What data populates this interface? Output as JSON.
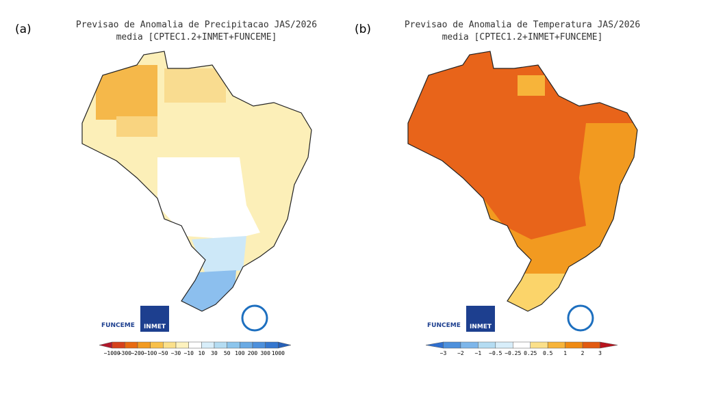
{
  "panels": [
    {
      "label": "(a)",
      "title": "Previsao de Anomalia de Precipitacao JAS/2026",
      "subtitle": "media [CPTEC1.2+INMET+FUNCEME]",
      "logos": [
        "FUNCEME",
        "INMET"
      ],
      "colorbar": {
        "labels": [
          "−1000",
          "−300",
          "−200",
          "−100",
          "−50",
          "−30",
          "−10",
          "10",
          "30",
          "50",
          "100",
          "200",
          "300",
          "1000"
        ],
        "colors": [
          "#b2182b",
          "#d6411b",
          "#e86a10",
          "#f29a20",
          "#f8c04a",
          "#fbe08a",
          "#fdf2be",
          "#ffffff",
          "#d8eefa",
          "#b4dcf2",
          "#8cc5ec",
          "#6aaae4",
          "#4d90dc",
          "#3577cf",
          "#2660b8"
        ]
      }
    },
    {
      "label": "(b)",
      "title": "Previsao de Anomalia de Temperatura JAS/2026",
      "subtitle": "media [CPTEC1.2+INMET+FUNCEME]",
      "logos": [
        "FUNCEME",
        "INMET"
      ],
      "colorbar": {
        "labels": [
          "−3",
          "−2",
          "−1",
          "−0.5",
          "−0.25",
          "0.25",
          "0.5",
          "1",
          "2",
          "3"
        ],
        "colors": [
          "#2f6fcf",
          "#4d90dc",
          "#7db6ea",
          "#b4dcf2",
          "#d8eefa",
          "#ffffff",
          "#fbe08a",
          "#f7b43a",
          "#ef8a12",
          "#e25a10",
          "#b8141e"
        ]
      }
    }
  ]
}
